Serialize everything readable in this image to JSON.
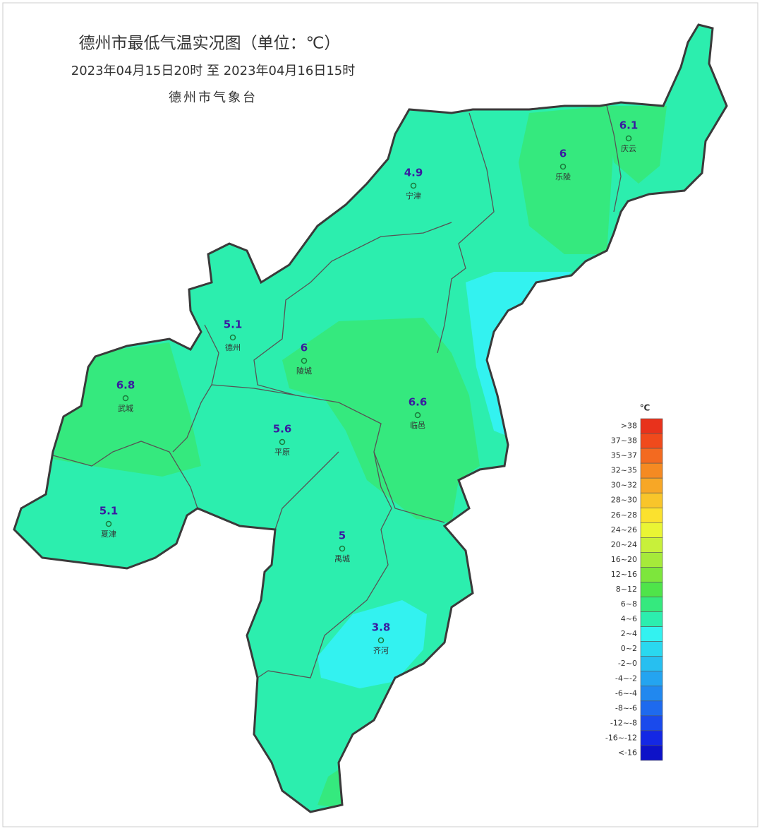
{
  "header": {
    "title": "德州市最低气温实况图（单位：℃）",
    "subtitle": "2023年04月15日20时  至  2023年04月16日15时",
    "source": "德州市气象台"
  },
  "stations": [
    {
      "name": "宁津",
      "value": "4.9"
    },
    {
      "name": "乐陵",
      "value": "6"
    },
    {
      "name": "庆云",
      "value": "6.1"
    },
    {
      "name": "德州",
      "value": "5.1"
    },
    {
      "name": "陵城",
      "value": "6"
    },
    {
      "name": "武城",
      "value": "6.8"
    },
    {
      "name": "平原",
      "value": "5.6"
    },
    {
      "name": "临邑",
      "value": "6.6"
    },
    {
      "name": "夏津",
      "value": "5.1"
    },
    {
      "name": "禹城",
      "value": "5"
    },
    {
      "name": "齐河",
      "value": "3.8"
    }
  ],
  "legend": {
    "unit": "℃",
    "items": [
      {
        "label": ">38",
        "color": "#e8321c"
      },
      {
        "label": "37~38",
        "color": "#f04a1c"
      },
      {
        "label": "35~37",
        "color": "#f36a20"
      },
      {
        "label": "32~35",
        "color": "#f58a22"
      },
      {
        "label": "30~32",
        "color": "#f7a726"
      },
      {
        "label": "28~30",
        "color": "#f9c52a"
      },
      {
        "label": "26~28",
        "color": "#fbe12e"
      },
      {
        "label": "24~26",
        "color": "#eaf534"
      },
      {
        "label": "20~24",
        "color": "#c8f03a"
      },
      {
        "label": "16~20",
        "color": "#a6ea3a"
      },
      {
        "label": "12~16",
        "color": "#7de63c"
      },
      {
        "label": "8~12",
        "color": "#4fe44a"
      },
      {
        "label": "6~8",
        "color": "#35e97e"
      },
      {
        "label": "4~6",
        "color": "#2ceeae"
      },
      {
        "label": "2~4",
        "color": "#33f2f0"
      },
      {
        "label": "0~2",
        "color": "#2ad8ef"
      },
      {
        "label": "-2~0",
        "color": "#27bff0"
      },
      {
        "label": "-4~-2",
        "color": "#24a4f0"
      },
      {
        "label": "-6~-4",
        "color": "#2188ef"
      },
      {
        "label": "-8~-6",
        "color": "#1e6aee"
      },
      {
        "label": "-12~-8",
        "color": "#1a4aec"
      },
      {
        "label": "-16~-12",
        "color": "#1428e4"
      },
      {
        "label": "<-16",
        "color": "#0d12c8"
      }
    ]
  }
}
